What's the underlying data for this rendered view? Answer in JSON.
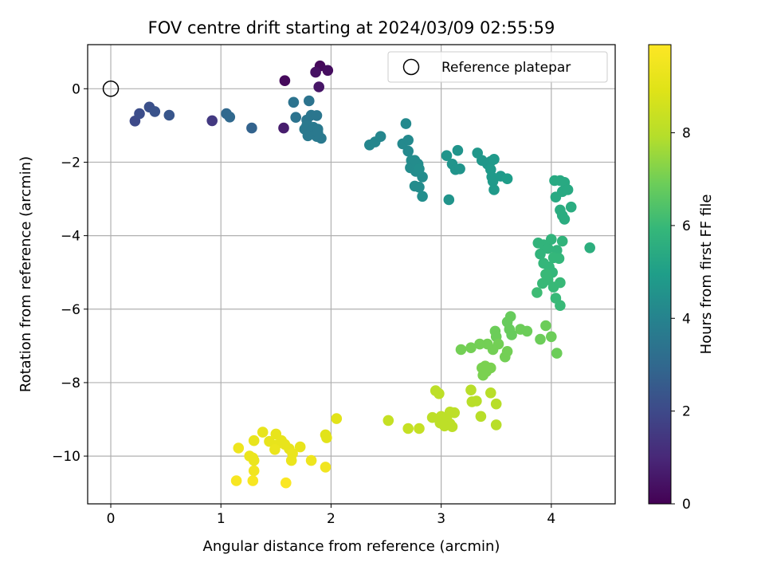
{
  "chart_data": {
    "type": "scatter",
    "title": "FOV centre drift starting at 2024/03/09 02:55:59",
    "xlabel": "Angular distance from reference (arcmin)",
    "ylabel": "Rotation from reference (arcmin)",
    "xlim": [
      -0.21,
      4.58
    ],
    "ylim": [
      -11.3,
      1.2
    ],
    "xticks": [
      "0",
      "1",
      "2",
      "3",
      "4"
    ],
    "yticks": [
      "0",
      "−2",
      "−4",
      "−6",
      "−8",
      "−10"
    ],
    "grid": true,
    "legend": {
      "location": "top-right",
      "entries": [
        "Reference platepar"
      ]
    },
    "colormap": "viridis",
    "colorbar": {
      "label": "Hours from first FF file",
      "range": [
        0,
        9.9
      ],
      "ticks": [
        "0",
        "2",
        "4",
        "6",
        "8"
      ]
    },
    "reference_point": {
      "x": 0,
      "y": 0,
      "label": "Reference platepar"
    },
    "series": [
      {
        "columns": [
          "x",
          "y",
          "hours"
        ],
        "points": [
          [
            1.58,
            0.22,
            0.2
          ],
          [
            1.9,
            0.62,
            0.2
          ],
          [
            1.97,
            0.5,
            0.3
          ],
          [
            1.86,
            0.45,
            0.4
          ],
          [
            1.89,
            0.05,
            0.5
          ],
          [
            1.57,
            -1.07,
            0.7
          ],
          [
            0.92,
            -0.87,
            1.5
          ],
          [
            0.22,
            -0.88,
            2.0
          ],
          [
            0.26,
            -0.68,
            2.1
          ],
          [
            0.35,
            -0.5,
            2.2
          ],
          [
            0.4,
            -0.62,
            2.3
          ],
          [
            0.53,
            -0.72,
            2.4
          ],
          [
            1.28,
            -1.07,
            2.8
          ],
          [
            1.05,
            -0.68,
            3.0
          ],
          [
            1.08,
            -0.77,
            3.0
          ],
          [
            1.66,
            -0.37,
            3.4
          ],
          [
            1.68,
            -0.78,
            3.4
          ],
          [
            1.8,
            -0.33,
            3.4
          ],
          [
            1.82,
            -0.72,
            3.5
          ],
          [
            1.78,
            -0.85,
            3.5
          ],
          [
            1.87,
            -0.73,
            3.5
          ],
          [
            1.78,
            -1.0,
            3.6
          ],
          [
            1.84,
            -1.05,
            3.6
          ],
          [
            1.76,
            -1.1,
            3.6
          ],
          [
            1.82,
            -1.15,
            3.6
          ],
          [
            1.88,
            -1.1,
            3.6
          ],
          [
            1.79,
            -1.28,
            3.6
          ],
          [
            1.87,
            -1.3,
            3.6
          ],
          [
            1.91,
            -1.35,
            3.6
          ],
          [
            1.88,
            -1.2,
            3.6
          ],
          [
            2.35,
            -1.53,
            4.1
          ],
          [
            2.4,
            -1.45,
            4.1
          ],
          [
            2.45,
            -1.3,
            4.1
          ],
          [
            2.65,
            -1.5,
            4.2
          ],
          [
            2.68,
            -0.95,
            4.2
          ],
          [
            2.7,
            -1.4,
            4.2
          ],
          [
            2.7,
            -1.7,
            4.2
          ],
          [
            2.73,
            -1.95,
            4.3
          ],
          [
            2.72,
            -2.15,
            4.3
          ],
          [
            2.76,
            -1.95,
            4.3
          ],
          [
            2.79,
            -2.05,
            4.3
          ],
          [
            2.77,
            -2.25,
            4.3
          ],
          [
            2.76,
            -2.65,
            4.3
          ],
          [
            2.8,
            -2.68,
            4.3
          ],
          [
            2.83,
            -2.4,
            4.3
          ],
          [
            2.83,
            -2.93,
            4.4
          ],
          [
            2.8,
            -2.18,
            4.4
          ],
          [
            3.05,
            -1.82,
            4.6
          ],
          [
            3.07,
            -3.02,
            4.6
          ],
          [
            3.1,
            -2.05,
            4.6
          ],
          [
            3.13,
            -2.2,
            4.6
          ],
          [
            3.17,
            -2.18,
            4.6
          ],
          [
            3.15,
            -1.68,
            4.6
          ],
          [
            3.33,
            -1.75,
            4.7
          ],
          [
            3.37,
            -1.95,
            4.7
          ],
          [
            3.42,
            -2.05,
            4.7
          ],
          [
            3.45,
            -1.98,
            4.7
          ],
          [
            3.48,
            -1.92,
            4.8
          ],
          [
            3.45,
            -2.2,
            4.8
          ],
          [
            3.46,
            -2.4,
            4.8
          ],
          [
            3.47,
            -2.52,
            4.8
          ],
          [
            3.48,
            -2.75,
            4.8
          ],
          [
            3.54,
            -2.38,
            4.8
          ],
          [
            3.6,
            -2.45,
            4.9
          ],
          [
            4.03,
            -2.5,
            5.4
          ],
          [
            4.08,
            -2.5,
            5.4
          ],
          [
            4.12,
            -2.55,
            5.4
          ],
          [
            4.1,
            -2.8,
            5.4
          ],
          [
            4.15,
            -2.75,
            5.4
          ],
          [
            4.04,
            -2.95,
            5.4
          ],
          [
            4.08,
            -3.3,
            5.5
          ],
          [
            4.1,
            -3.45,
            5.5
          ],
          [
            4.12,
            -3.55,
            5.5
          ],
          [
            4.18,
            -3.22,
            5.5
          ],
          [
            4.35,
            -4.33,
            5.6
          ],
          [
            3.88,
            -4.2,
            5.8
          ],
          [
            3.93,
            -4.25,
            5.8
          ],
          [
            3.9,
            -4.5,
            5.8
          ],
          [
            3.97,
            -4.35,
            5.8
          ],
          [
            4.0,
            -4.1,
            5.8
          ],
          [
            4.05,
            -4.4,
            5.8
          ],
          [
            4.1,
            -4.15,
            5.8
          ],
          [
            4.02,
            -4.6,
            5.9
          ],
          [
            4.07,
            -4.62,
            5.9
          ],
          [
            3.93,
            -4.75,
            5.9
          ],
          [
            3.98,
            -4.85,
            5.9
          ],
          [
            4.01,
            -5.0,
            5.9
          ],
          [
            3.95,
            -5.05,
            6.0
          ],
          [
            3.92,
            -5.3,
            6.0
          ],
          [
            3.97,
            -5.2,
            6.0
          ],
          [
            4.02,
            -5.4,
            6.0
          ],
          [
            4.08,
            -5.28,
            6.0
          ],
          [
            4.04,
            -5.7,
            6.0
          ],
          [
            4.08,
            -5.9,
            6.0
          ],
          [
            3.87,
            -5.55,
            6.1
          ],
          [
            3.63,
            -6.2,
            6.8
          ],
          [
            3.6,
            -6.35,
            6.8
          ],
          [
            3.62,
            -6.55,
            6.8
          ],
          [
            3.64,
            -6.7,
            6.8
          ],
          [
            3.72,
            -6.55,
            6.9
          ],
          [
            3.78,
            -6.6,
            6.9
          ],
          [
            3.9,
            -6.82,
            6.9
          ],
          [
            3.95,
            -6.45,
            6.9
          ],
          [
            4.0,
            -6.75,
            6.9
          ],
          [
            4.05,
            -7.2,
            6.9
          ],
          [
            3.49,
            -6.6,
            6.9
          ],
          [
            3.5,
            -6.75,
            6.9
          ],
          [
            3.52,
            -6.95,
            7.0
          ],
          [
            3.47,
            -7.1,
            7.0
          ],
          [
            3.42,
            -6.95,
            7.0
          ],
          [
            3.35,
            -6.95,
            7.0
          ],
          [
            3.27,
            -7.05,
            7.0
          ],
          [
            3.18,
            -7.1,
            7.0
          ],
          [
            3.58,
            -7.3,
            7.0
          ],
          [
            3.6,
            -7.15,
            7.0
          ],
          [
            3.37,
            -7.6,
            7.1
          ],
          [
            3.41,
            -7.7,
            7.1
          ],
          [
            3.45,
            -7.6,
            7.1
          ],
          [
            3.38,
            -7.8,
            7.1
          ],
          [
            3.4,
            -7.55,
            7.1
          ],
          [
            3.27,
            -8.2,
            8.0
          ],
          [
            3.28,
            -8.52,
            8.0
          ],
          [
            3.32,
            -8.5,
            8.0
          ],
          [
            3.45,
            -8.28,
            8.0
          ],
          [
            3.5,
            -8.58,
            8.0
          ],
          [
            3.36,
            -8.92,
            8.0
          ],
          [
            3.5,
            -9.15,
            8.0
          ],
          [
            2.95,
            -8.22,
            8.1
          ],
          [
            2.98,
            -8.3,
            8.1
          ],
          [
            2.92,
            -8.95,
            8.1
          ],
          [
            3.0,
            -8.92,
            8.1
          ],
          [
            3.05,
            -8.95,
            8.1
          ],
          [
            3.08,
            -8.8,
            8.1
          ],
          [
            3.12,
            -8.82,
            8.1
          ],
          [
            3.08,
            -9.12,
            8.1
          ],
          [
            3.03,
            -9.18,
            8.1
          ],
          [
            2.99,
            -9.1,
            8.1
          ],
          [
            3.1,
            -9.2,
            8.1
          ],
          [
            2.52,
            -9.03,
            8.3
          ],
          [
            2.7,
            -9.25,
            8.3
          ],
          [
            2.8,
            -9.25,
            8.3
          ],
          [
            2.05,
            -8.98,
            9.0
          ],
          [
            1.95,
            -9.42,
            9.0
          ],
          [
            1.96,
            -9.5,
            9.0
          ],
          [
            1.38,
            -9.35,
            9.2
          ],
          [
            1.3,
            -9.58,
            9.2
          ],
          [
            1.44,
            -9.6,
            9.2
          ],
          [
            1.5,
            -9.4,
            9.2
          ],
          [
            1.5,
            -9.7,
            9.2
          ],
          [
            1.55,
            -9.58,
            9.2
          ],
          [
            1.58,
            -9.68,
            9.2
          ],
          [
            1.62,
            -9.8,
            9.2
          ],
          [
            1.72,
            -9.75,
            9.2
          ],
          [
            1.49,
            -9.82,
            9.3
          ],
          [
            1.26,
            -10.0,
            9.3
          ],
          [
            1.29,
            -10.05,
            9.3
          ],
          [
            1.3,
            -10.12,
            9.3
          ],
          [
            1.65,
            -9.93,
            9.3
          ],
          [
            1.64,
            -10.12,
            9.3
          ],
          [
            1.16,
            -9.78,
            9.4
          ],
          [
            1.82,
            -10.12,
            9.4
          ],
          [
            1.95,
            -10.3,
            9.5
          ],
          [
            1.3,
            -10.4,
            9.5
          ],
          [
            1.14,
            -10.67,
            9.7
          ],
          [
            1.29,
            -10.67,
            9.7
          ],
          [
            1.59,
            -10.73,
            9.8
          ]
        ]
      }
    ]
  }
}
